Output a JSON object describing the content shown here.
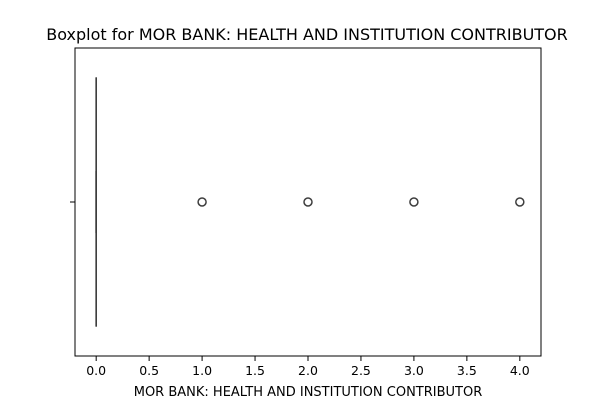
{
  "chart_data": {
    "type": "boxplot",
    "title": "Boxplot for MOR BANK: HEALTH AND INSTITUTION CONTRIBUTOR",
    "xlabel": "MOR BANK: HEALTH AND INSTITUTION CONTRIBUTOR",
    "ylabel": "",
    "xlim": [
      -0.2,
      4.2
    ],
    "x_ticks": [
      0.0,
      0.5,
      1.0,
      1.5,
      2.0,
      2.5,
      3.0,
      3.5,
      4.0
    ],
    "x_tick_labels": [
      "0.0",
      "0.5",
      "1.0",
      "1.5",
      "2.0",
      "2.5",
      "3.0",
      "3.5",
      "4.0"
    ],
    "grid": false,
    "box": {
      "q1": 0.0,
      "median": 0.0,
      "q3": 0.0,
      "whisker_low": 0.0,
      "whisker_high": 0.0
    },
    "outliers": [
      1.0,
      2.0,
      3.0,
      4.0
    ],
    "colors": {
      "box_edge": "#3d3d3d",
      "outlier_edge": "#3d3d3d",
      "axes": "#000000"
    }
  }
}
